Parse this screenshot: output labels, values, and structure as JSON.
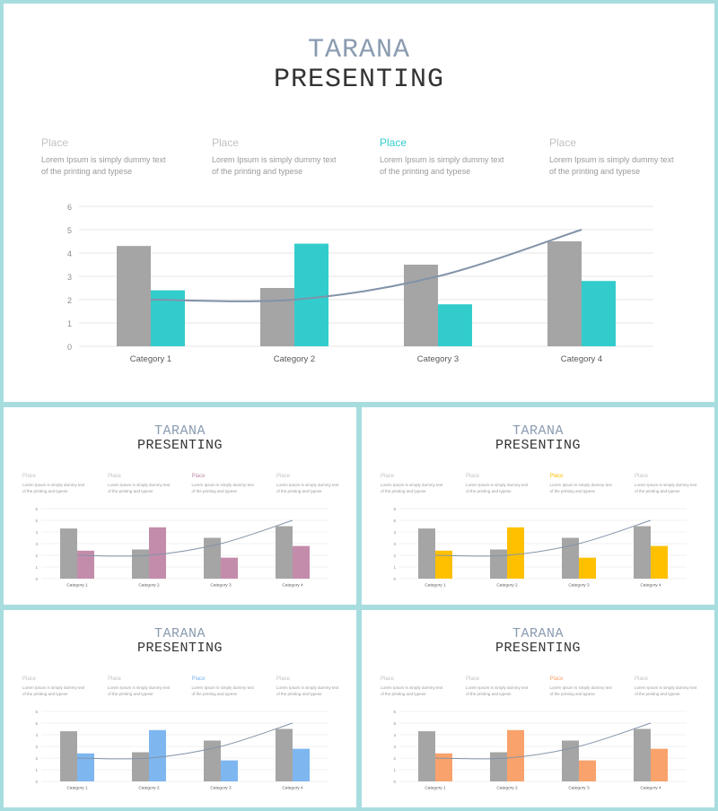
{
  "title_line1": "TARANA",
  "title_line2": "PRESENTING",
  "places": [
    {
      "heading": "Place",
      "text_line1": "Lorem Ipsum is simply dummy text",
      "text_line2": "of the printing and typese"
    },
    {
      "heading": "Place",
      "text_line1": "Lorem Ipsum is simply dummy text",
      "text_line2": "of the printing and typese"
    },
    {
      "heading": "Place",
      "text_line1": "Lorem Ipsum is simply dummy text",
      "text_line2": "of the printing and typese"
    },
    {
      "heading": "Place",
      "text_line1": "Lorem Ipsum is simply dummy text",
      "text_line2": "of the printing and typese"
    }
  ],
  "highlighted_place_index": 2,
  "colors": {
    "border": "#a8dde0",
    "title_accent": "#8a9bb0",
    "bar_gray": "#a5a5a5",
    "line": "#8193a8",
    "slide_variants": [
      "#33cccc",
      "#c48cab",
      "#ffc000",
      "#7eb6f0",
      "#f9a26c"
    ]
  },
  "chart_data": {
    "type": "bar",
    "categories": [
      "Category 1",
      "Category 2",
      "Category 3",
      "Category 4"
    ],
    "series": [
      {
        "values": [
          4.3,
          2.5,
          3.5,
          4.5
        ],
        "kind": "bar",
        "color": "gray"
      },
      {
        "values": [
          2.4,
          4.4,
          1.8,
          2.8
        ],
        "kind": "bar",
        "color": "accent"
      },
      {
        "values": [
          2,
          2,
          3,
          5
        ],
        "kind": "line",
        "color": "line"
      }
    ],
    "y_ticks": [
      "0",
      "1",
      "2",
      "3",
      "4",
      "5",
      "6"
    ],
    "ylim": [
      0,
      6
    ],
    "grid": true,
    "legend": "none"
  }
}
